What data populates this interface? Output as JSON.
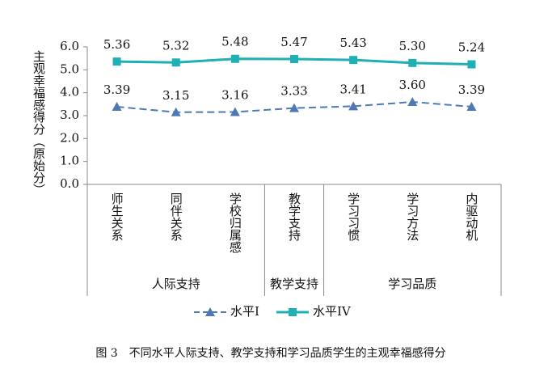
{
  "chart_data": {
    "type": "line",
    "y_label": "主观幸福感得分（原始分）",
    "caption": "图 3　不同水平人际支持、教学支持和学习品质学生的主观幸福感得分",
    "categories": [
      "师生关系",
      "同伴关系",
      "学校归属感",
      "教学支持",
      "学习习惯",
      "学习方法",
      "内驱动机"
    ],
    "category_groups": [
      "人际支持",
      "人际支持",
      "人际支持",
      "教学支持",
      "学习品质",
      "学习品质",
      "学习品质"
    ],
    "series": [
      {
        "name": "水平I",
        "color": "#4f79b5",
        "marker": "triangle",
        "dash": true,
        "values": [
          3.39,
          3.15,
          3.16,
          3.33,
          3.41,
          3.6,
          3.39
        ],
        "value_labels": [
          "3.39",
          "3.15",
          "3.16",
          "3.33",
          "3.41",
          "3.60",
          "3.39"
        ]
      },
      {
        "name": "水平IV",
        "color": "#1fb0b3",
        "marker": "square",
        "dash": false,
        "values": [
          5.36,
          5.32,
          5.48,
          5.47,
          5.43,
          5.3,
          5.24
        ],
        "value_labels": [
          "5.36",
          "5.32",
          "5.48",
          "5.47",
          "5.43",
          "5.30",
          "5.24"
        ]
      }
    ],
    "ylim": [
      0,
      6
    ],
    "yticks": [
      {
        "value": 0,
        "label": "0.0"
      },
      {
        "value": 1,
        "label": "1.0"
      },
      {
        "value": 2,
        "label": "2.0"
      },
      {
        "value": 3,
        "label": "3.0"
      },
      {
        "value": 4,
        "label": "4.0"
      },
      {
        "value": 5,
        "label": "5.0"
      },
      {
        "value": 6,
        "label": "6.0"
      }
    ],
    "grid": false,
    "legend": "bottom"
  }
}
